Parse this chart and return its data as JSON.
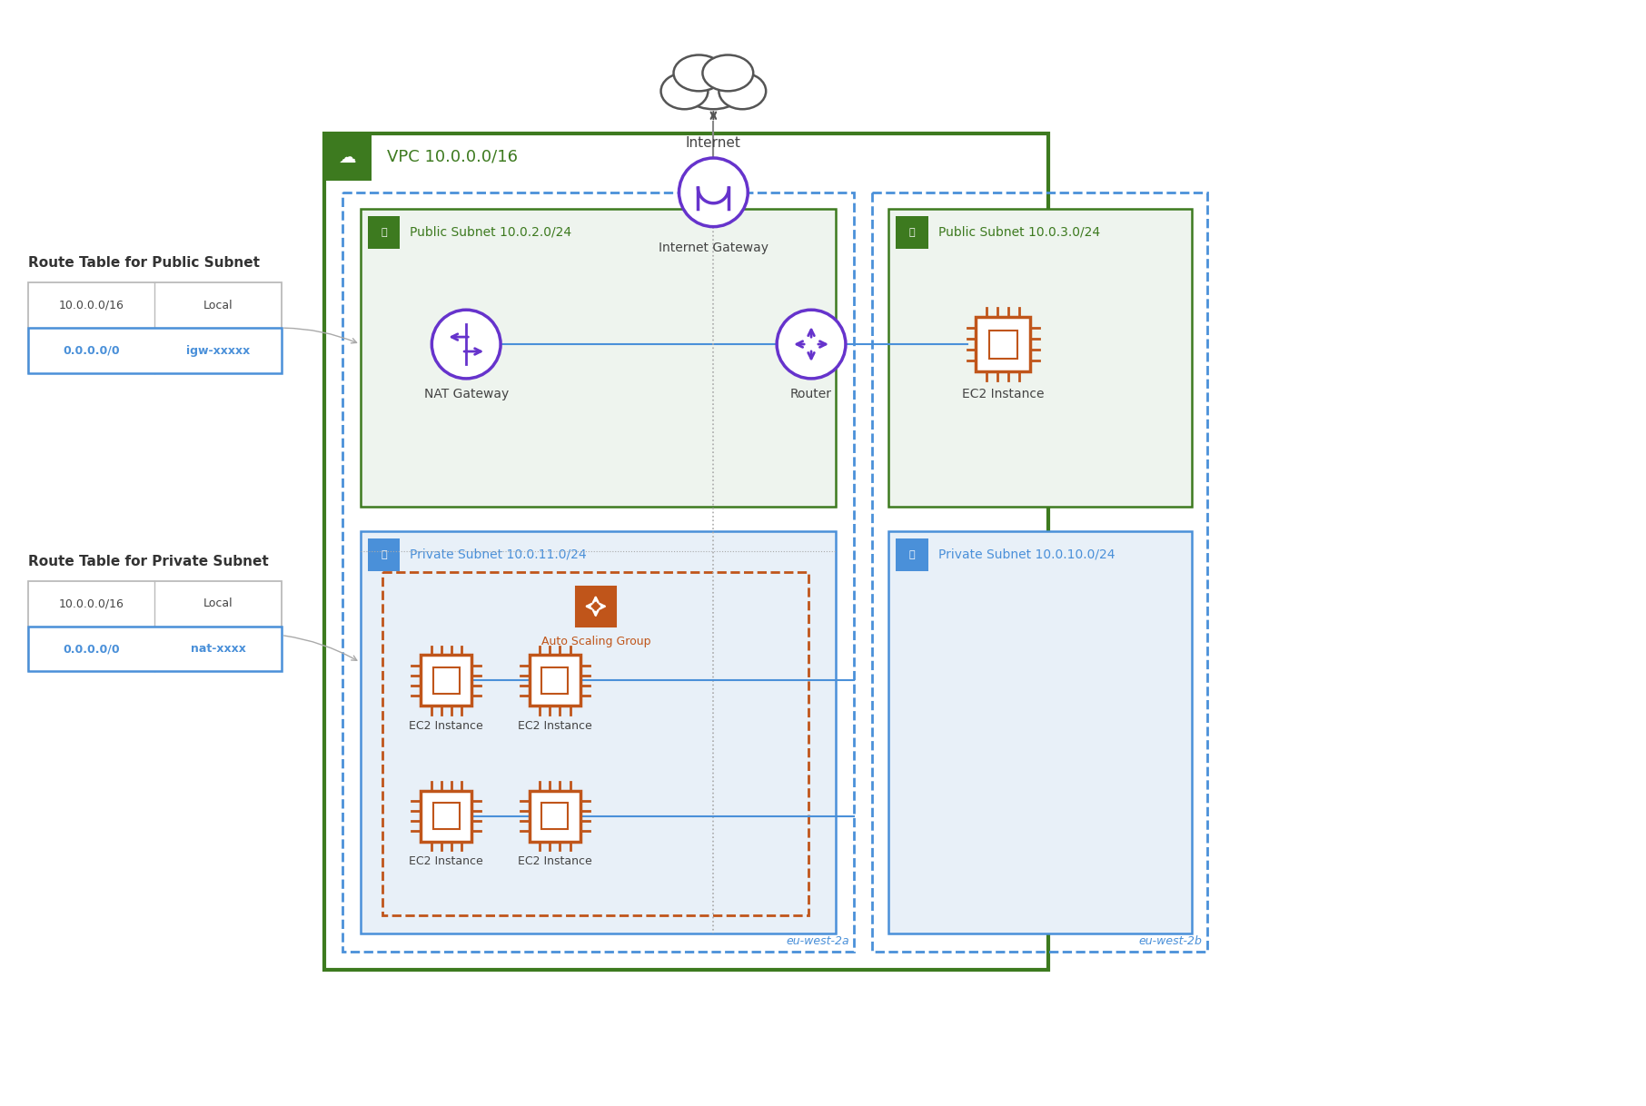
{
  "bg_color": "#ffffff",
  "vpc_color": "#3d7a1f",
  "vpc_label": "VPC 10.0.0.0/16",
  "az_left_label": "eu-west-2a",
  "az_right_label": "eu-west-2b",
  "az_border_color": "#4a90d9",
  "public_subnet_bg": "#eef4ee",
  "public_subnet_border": "#3d7a1f",
  "public_subnet_text_color": "#3d7a1f",
  "private_subnet_bg": "#e8f0f8",
  "private_subnet_border": "#4a90d9",
  "private_subnet_text_color": "#4a90d9",
  "nat_gw_color": "#6633cc",
  "router_color": "#6633cc",
  "igw_color": "#6633cc",
  "ec2_color": "#c0551a",
  "asg_color": "#c0551a",
  "asg_border_color": "#c0551a",
  "line_color": "#4a90d9",
  "route_table_border": "#4a90d9",
  "route_table_row2_color": "#4a90d9",
  "internet_color": "#444444",
  "cloud_color": "#555555"
}
